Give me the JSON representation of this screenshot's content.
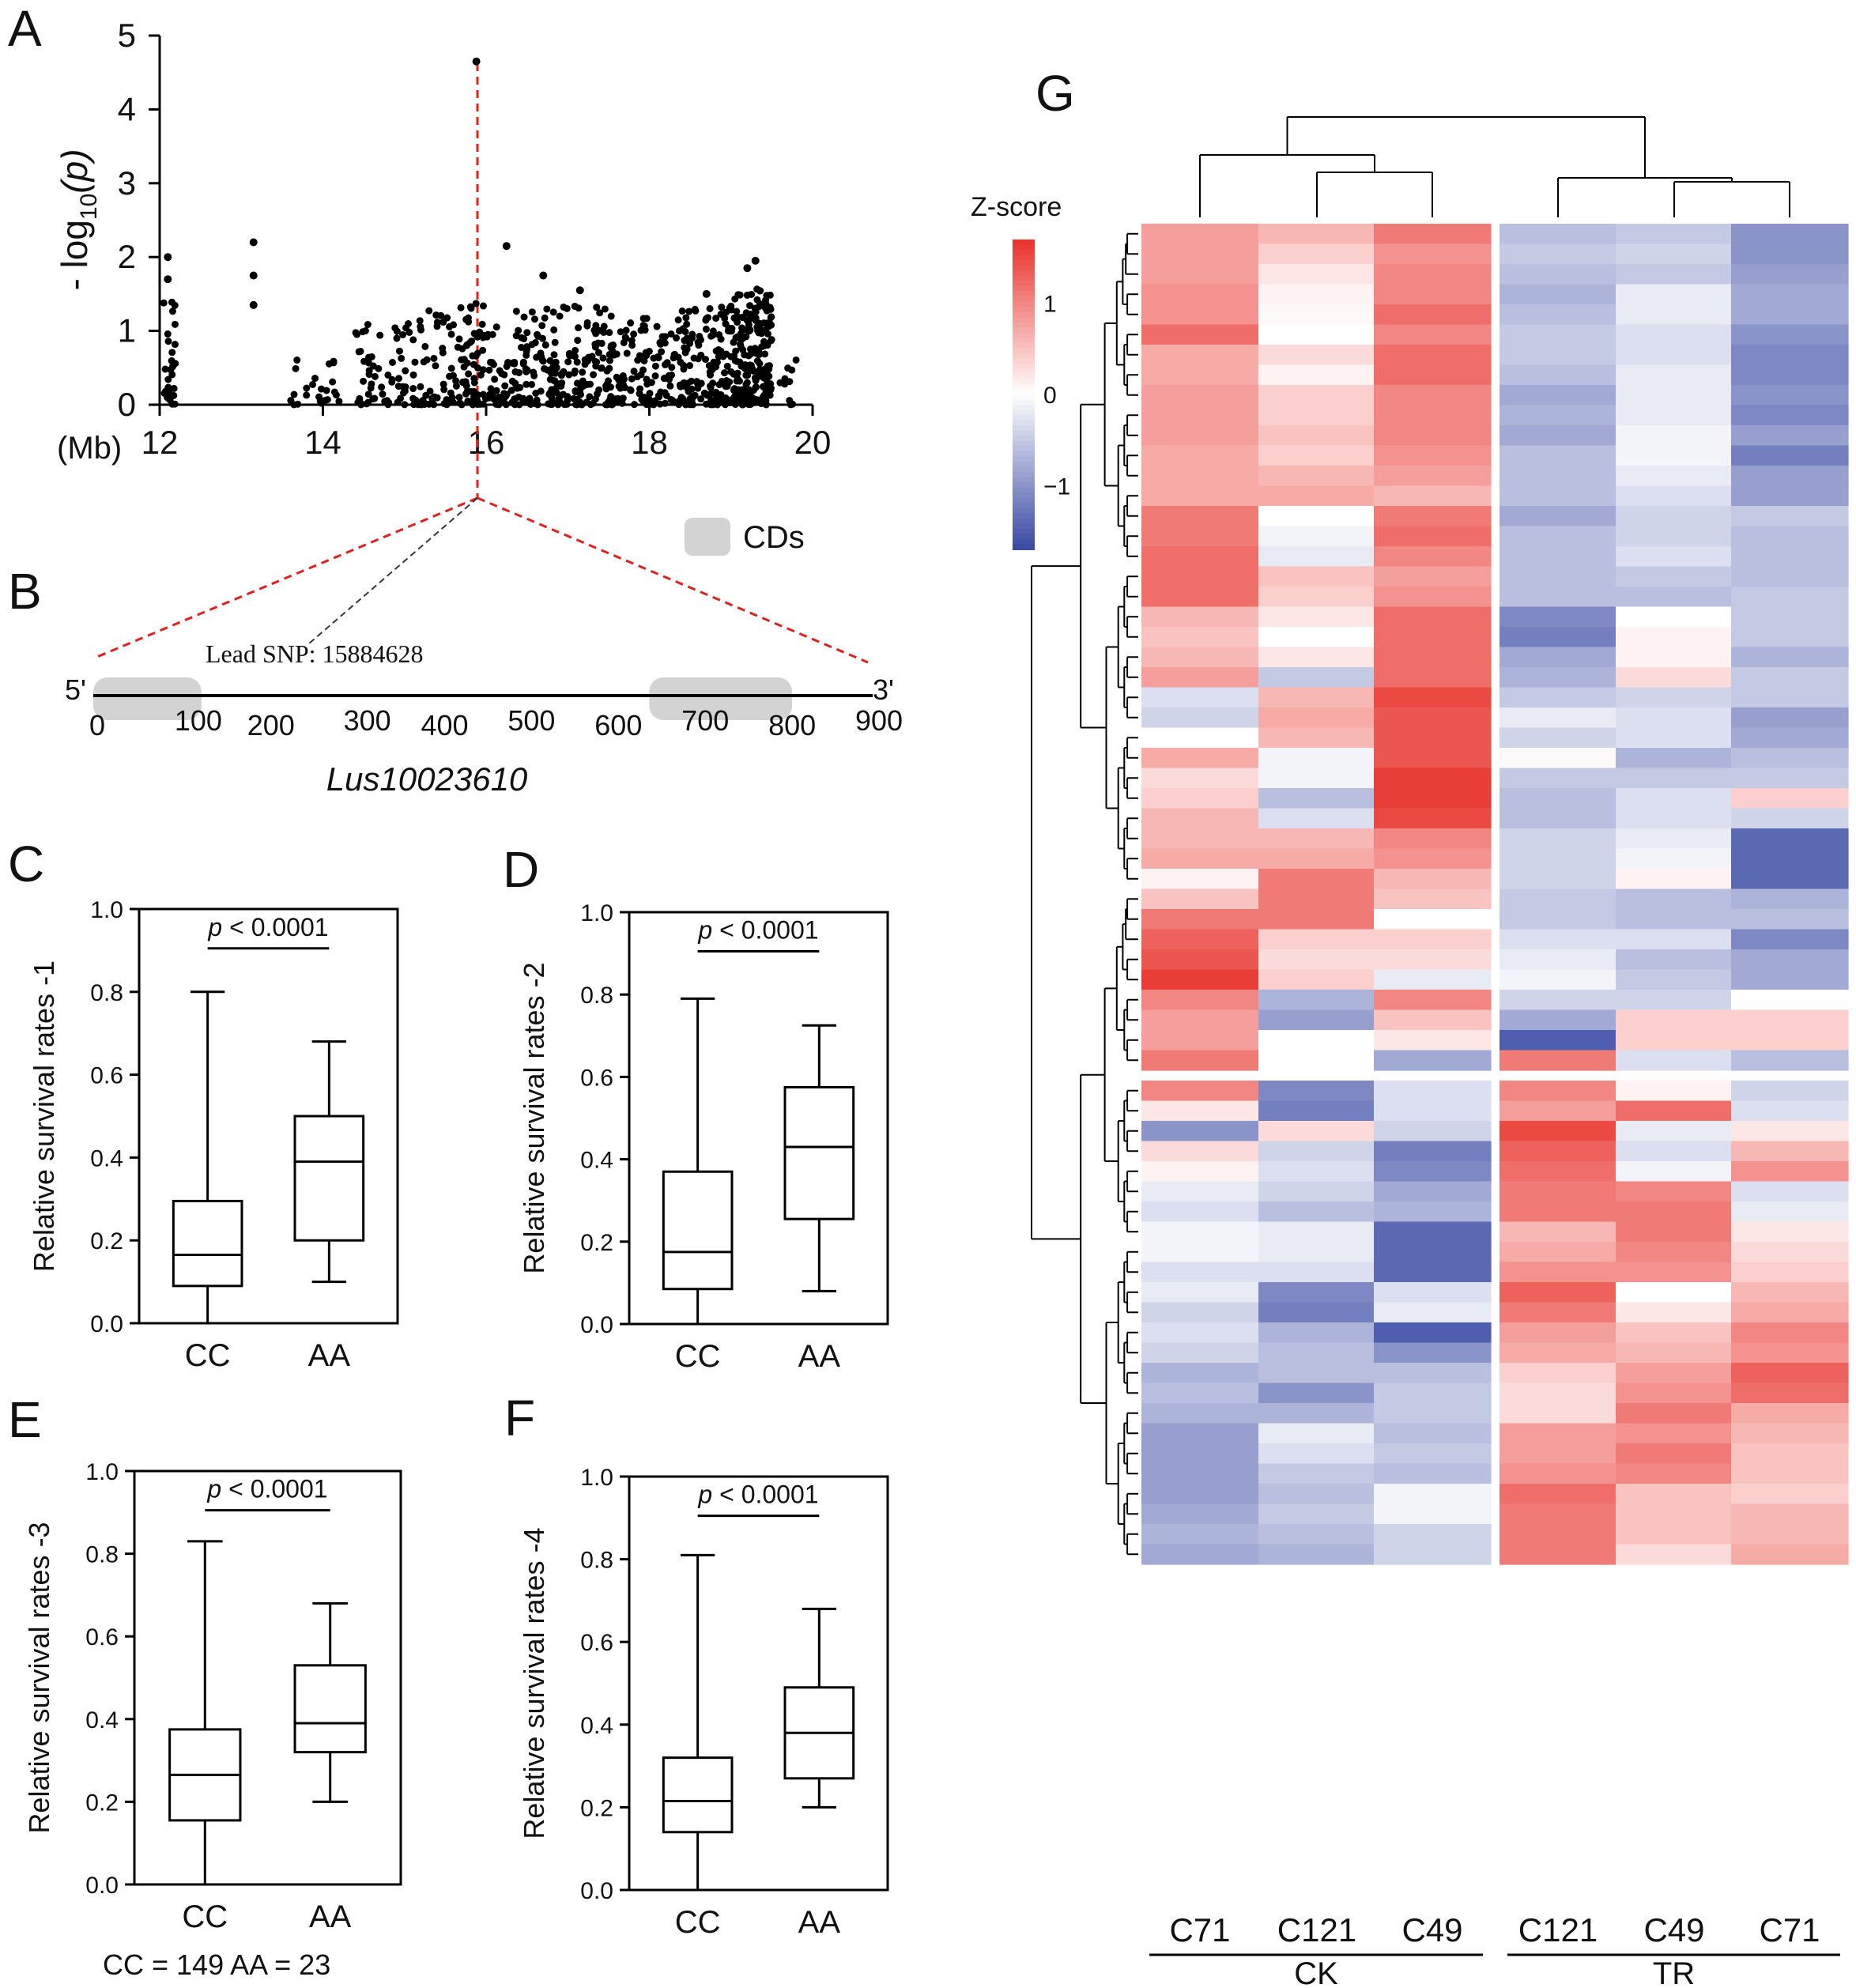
{
  "panels": {
    "A": "A",
    "B": "B",
    "C": "C",
    "D": "D",
    "E": "E",
    "F": "F",
    "G": "G"
  },
  "chart_data": [
    {
      "id": "A",
      "type": "scatter",
      "title": "",
      "ylabel_prefix": "- log",
      "ylabel_sub": "10",
      "ylabel_var": "(p)",
      "unit_label": "(Mb)",
      "xlim": [
        12,
        20
      ],
      "ylim": [
        0,
        5
      ],
      "xticks": [
        12,
        14,
        16,
        18,
        20
      ],
      "yticks": [
        0,
        1,
        2,
        3,
        4,
        5
      ],
      "lead_snp_mb": 15.88,
      "lead_value": 4.65,
      "notable_points": [
        {
          "x": 12.1,
          "y": 2.0
        },
        {
          "x": 12.1,
          "y": 1.7
        },
        {
          "x": 13.15,
          "y": 2.2
        },
        {
          "x": 13.15,
          "y": 1.75
        },
        {
          "x": 13.15,
          "y": 1.35
        },
        {
          "x": 16.25,
          "y": 2.15
        },
        {
          "x": 16.7,
          "y": 1.75
        },
        {
          "x": 17.15,
          "y": 1.55
        },
        {
          "x": 19.3,
          "y": 1.95
        },
        {
          "x": 19.2,
          "y": 1.85
        },
        {
          "x": 18.7,
          "y": 1.5
        }
      ],
      "bands": [
        {
          "x0": 12.05,
          "x1": 12.2,
          "ymax": 1.6,
          "n": 30
        },
        {
          "x0": 13.6,
          "x1": 14.2,
          "ymax": 0.7,
          "n": 25
        },
        {
          "x0": 14.4,
          "x1": 15.2,
          "ymax": 1.15,
          "n": 70
        },
        {
          "x0": 15.2,
          "x1": 16.0,
          "ymax": 1.4,
          "n": 110
        },
        {
          "x0": 16.0,
          "x1": 16.8,
          "ymax": 1.3,
          "n": 110
        },
        {
          "x0": 16.8,
          "x1": 17.6,
          "ymax": 1.4,
          "n": 140
        },
        {
          "x0": 17.6,
          "x1": 18.4,
          "ymax": 1.2,
          "n": 110
        },
        {
          "x0": 18.4,
          "x1": 19.0,
          "ymax": 1.35,
          "n": 130
        },
        {
          "x0": 19.0,
          "x1": 19.5,
          "ymax": 1.6,
          "n": 200
        },
        {
          "x0": 19.6,
          "x1": 19.8,
          "ymax": 0.7,
          "n": 10
        }
      ]
    },
    {
      "id": "B",
      "type": "gene-model",
      "legend": "CDs",
      "lead_snp_label": "Lead SNP: 15884628",
      "gene_name": "Lus10023610",
      "five_prime": "5'",
      "three_prime": "3'",
      "xlim": [
        0,
        900
      ],
      "xticks": [
        0,
        100,
        200,
        300,
        400,
        500,
        600,
        700,
        800,
        900
      ],
      "cds": [
        [
          0,
          120
        ],
        [
          640,
          800
        ]
      ]
    },
    {
      "id": "C",
      "type": "box",
      "ylabel": "Relative survival rates -1",
      "categories": [
        "CC",
        "AA"
      ],
      "ylim": [
        0,
        1.0
      ],
      "yticks": [
        "0.0",
        "0.2",
        "0.4",
        "0.6",
        "0.8",
        "1.0"
      ],
      "annotation_p": "p",
      "annotation": " < 0.0001",
      "boxes": [
        {
          "min": 0.0,
          "q1": 0.09,
          "median": 0.165,
          "q3": 0.295,
          "max": 0.8
        },
        {
          "min": 0.1,
          "q1": 0.2,
          "median": 0.39,
          "q3": 0.5,
          "max": 0.68
        }
      ]
    },
    {
      "id": "D",
      "type": "box",
      "ylabel": "Relative survival rates -2",
      "categories": [
        "CC",
        "AA"
      ],
      "ylim": [
        0,
        1.0
      ],
      "yticks": [
        "0.0",
        "0.2",
        "0.4",
        "0.6",
        "0.8",
        "1.0"
      ],
      "annotation_p": "p",
      "annotation": " < 0.0001",
      "boxes": [
        {
          "min": 0.0,
          "q1": 0.085,
          "median": 0.175,
          "q3": 0.37,
          "max": 0.79
        },
        {
          "min": 0.08,
          "q1": 0.255,
          "median": 0.43,
          "q3": 0.575,
          "max": 0.725
        }
      ]
    },
    {
      "id": "E",
      "type": "box",
      "ylabel": "Relative survival rates -3",
      "categories": [
        "CC",
        "AA"
      ],
      "ylim": [
        0,
        1.0
      ],
      "yticks": [
        "0.0",
        "0.2",
        "0.4",
        "0.6",
        "0.8",
        "1.0"
      ],
      "annotation_p": "p",
      "annotation": " < 0.0001",
      "boxes": [
        {
          "min": 0.0,
          "q1": 0.155,
          "median": 0.265,
          "q3": 0.375,
          "max": 0.83
        },
        {
          "min": 0.2,
          "q1": 0.32,
          "median": 0.39,
          "q3": 0.53,
          "max": 0.68
        }
      ],
      "footnote": "CC = 149  AA = 23"
    },
    {
      "id": "F",
      "type": "box",
      "ylabel": "Relative survival rates -4",
      "categories": [
        "CC",
        "AA"
      ],
      "ylim": [
        0,
        1.0
      ],
      "yticks": [
        "0.0",
        "0.2",
        "0.4",
        "0.6",
        "0.8",
        "1.0"
      ],
      "annotation_p": "p",
      "annotation": " < 0.0001",
      "boxes": [
        {
          "min": 0.0,
          "q1": 0.14,
          "median": 0.215,
          "q3": 0.32,
          "max": 0.81
        },
        {
          "min": 0.2,
          "q1": 0.27,
          "median": 0.38,
          "q3": 0.49,
          "max": 0.68
        }
      ]
    },
    {
      "id": "G",
      "type": "heatmap",
      "colorbar_title": "Z-score",
      "colorbar_ticks": [
        "1",
        "0",
        "−1"
      ],
      "colorbar_values": [
        1,
        0,
        -1
      ],
      "zlim": [
        -1.7,
        1.7
      ],
      "columns": [
        "C71",
        "C121",
        "C49",
        "C121",
        "C49",
        "C71"
      ],
      "groups": [
        {
          "label": "CK",
          "span": [
            0,
            2
          ]
        },
        {
          "label": "TR",
          "span": [
            3,
            5
          ]
        }
      ],
      "row_split_after": 41,
      "values": [
        [
          0.8,
          0.6,
          1.1,
          -0.6,
          -0.5,
          -1.0
        ],
        [
          0.8,
          0.4,
          0.9,
          -0.5,
          -0.4,
          -1.0
        ],
        [
          0.8,
          0.2,
          1.0,
          -0.6,
          -0.5,
          -0.9
        ],
        [
          0.9,
          0.1,
          1.0,
          -0.7,
          -0.2,
          -0.8
        ],
        [
          0.9,
          0.05,
          1.2,
          -0.6,
          -0.2,
          -0.8
        ],
        [
          1.2,
          0.0,
          1.0,
          -0.5,
          -0.3,
          -1.0
        ],
        [
          0.7,
          0.3,
          1.2,
          -0.5,
          -0.3,
          -1.1
        ],
        [
          0.7,
          0.1,
          1.2,
          -0.6,
          -0.2,
          -1.1
        ],
        [
          0.8,
          0.4,
          1.0,
          -0.8,
          -0.2,
          -1.0
        ],
        [
          0.8,
          0.4,
          1.0,
          -0.7,
          -0.2,
          -1.1
        ],
        [
          0.8,
          0.5,
          1.0,
          -0.8,
          -0.1,
          -0.9
        ],
        [
          0.7,
          0.4,
          0.9,
          -0.6,
          -0.1,
          -1.2
        ],
        [
          0.7,
          0.6,
          0.8,
          -0.6,
          -0.2,
          -0.9
        ],
        [
          0.7,
          0.7,
          0.6,
          -0.6,
          -0.3,
          -0.9
        ],
        [
          1.1,
          0.0,
          1.1,
          -0.8,
          -0.4,
          -0.5
        ],
        [
          1.1,
          -0.1,
          1.2,
          -0.6,
          -0.4,
          -0.6
        ],
        [
          1.2,
          -0.2,
          1.0,
          -0.6,
          -0.3,
          -0.6
        ],
        [
          1.2,
          0.5,
          0.8,
          -0.6,
          -0.5,
          -0.6
        ],
        [
          1.2,
          0.4,
          0.9,
          -0.6,
          -0.6,
          -0.5
        ],
        [
          0.6,
          0.2,
          1.2,
          -1.1,
          0.0,
          -0.5
        ],
        [
          0.5,
          0.0,
          1.2,
          -1.2,
          0.1,
          -0.5
        ],
        [
          0.6,
          0.2,
          1.2,
          -0.8,
          0.1,
          -0.7
        ],
        [
          0.8,
          -0.5,
          1.2,
          -0.7,
          0.3,
          -0.5
        ],
        [
          -0.3,
          0.6,
          1.5,
          -0.5,
          -0.4,
          -0.5
        ],
        [
          -0.4,
          0.7,
          1.4,
          -0.2,
          -0.3,
          -0.9
        ],
        [
          0.0,
          0.6,
          1.4,
          -0.4,
          -0.3,
          -0.8
        ],
        [
          0.7,
          -0.1,
          1.4,
          0.05,
          -0.7,
          -0.6
        ],
        [
          0.3,
          -0.1,
          1.6,
          -0.5,
          -0.5,
          -0.5
        ],
        [
          0.4,
          -0.6,
          1.6,
          -0.6,
          -0.3,
          0.4
        ],
        [
          0.6,
          -0.3,
          1.5,
          -0.6,
          -0.3,
          -0.4
        ],
        [
          0.6,
          0.6,
          1.0,
          -0.4,
          -0.2,
          -1.4
        ],
        [
          0.7,
          0.7,
          0.9,
          -0.4,
          -0.1,
          -1.4
        ],
        [
          0.1,
          1.1,
          0.6,
          -0.4,
          0.1,
          -1.4
        ],
        [
          0.5,
          1.1,
          0.5,
          -0.5,
          -0.6,
          -0.7
        ],
        [
          1.1,
          1.1,
          0.0,
          -0.5,
          -0.6,
          -0.6
        ],
        [
          1.3,
          0.4,
          0.4,
          -0.3,
          -0.3,
          -1.1
        ],
        [
          1.4,
          0.3,
          0.3,
          -0.2,
          -0.6,
          -0.8
        ],
        [
          1.6,
          0.4,
          -0.2,
          -0.1,
          -0.5,
          -0.8
        ],
        [
          1.0,
          -0.7,
          1.0,
          -0.4,
          -0.4,
          0.0
        ],
        [
          0.8,
          -0.9,
          0.5,
          -0.8,
          0.4,
          0.4
        ],
        [
          0.8,
          0.0,
          0.2,
          -1.5,
          0.4,
          0.4
        ],
        [
          1.1,
          0.0,
          -0.8,
          1.1,
          -0.3,
          -0.6
        ],
        [
          1.0,
          -1.1,
          -0.3,
          1.0,
          0.1,
          -0.4
        ],
        [
          0.2,
          -1.2,
          -0.3,
          0.8,
          1.2,
          -0.3
        ],
        [
          -1.0,
          0.3,
          -0.4,
          1.5,
          -0.2,
          0.2
        ],
        [
          0.3,
          -0.4,
          -1.2,
          1.3,
          -0.3,
          0.6
        ],
        [
          0.1,
          -0.3,
          -1.1,
          1.2,
          -0.1,
          0.9
        ],
        [
          -0.2,
          -0.4,
          -0.8,
          1.1,
          1.0,
          -0.3
        ],
        [
          -0.3,
          -0.6,
          -0.7,
          1.1,
          1.1,
          -0.2
        ],
        [
          -0.1,
          -0.2,
          -1.4,
          0.6,
          1.1,
          0.2
        ],
        [
          -0.1,
          -0.2,
          -1.4,
          0.7,
          1.0,
          0.3
        ],
        [
          -0.3,
          -0.3,
          -1.4,
          0.9,
          0.9,
          0.4
        ],
        [
          -0.2,
          -1.1,
          -0.3,
          1.3,
          0.0,
          0.6
        ],
        [
          -0.4,
          -1.2,
          -0.2,
          1.1,
          0.2,
          0.7
        ],
        [
          -0.3,
          -0.7,
          -1.5,
          0.8,
          0.5,
          1.0
        ],
        [
          -0.4,
          -0.6,
          -1.0,
          0.7,
          0.6,
          0.9
        ],
        [
          -0.7,
          -0.6,
          -0.6,
          0.4,
          0.8,
          1.3
        ],
        [
          -0.6,
          -1.0,
          -0.5,
          0.3,
          0.9,
          1.2
        ],
        [
          -0.7,
          -0.7,
          -0.5,
          0.3,
          1.1,
          0.7
        ],
        [
          -0.9,
          -0.2,
          -0.6,
          0.8,
          0.9,
          0.6
        ],
        [
          -0.9,
          -0.3,
          -0.5,
          0.8,
          1.1,
          0.5
        ],
        [
          -0.9,
          -0.5,
          -0.6,
          0.9,
          1.0,
          0.5
        ],
        [
          -0.9,
          -0.6,
          -0.1,
          1.2,
          0.5,
          0.4
        ],
        [
          -0.8,
          -0.5,
          -0.1,
          1.1,
          0.5,
          0.6
        ],
        [
          -0.7,
          -0.6,
          -0.4,
          1.1,
          0.5,
          0.6
        ],
        [
          -0.8,
          -0.7,
          -0.4,
          1.1,
          0.3,
          0.7
        ]
      ]
    }
  ]
}
